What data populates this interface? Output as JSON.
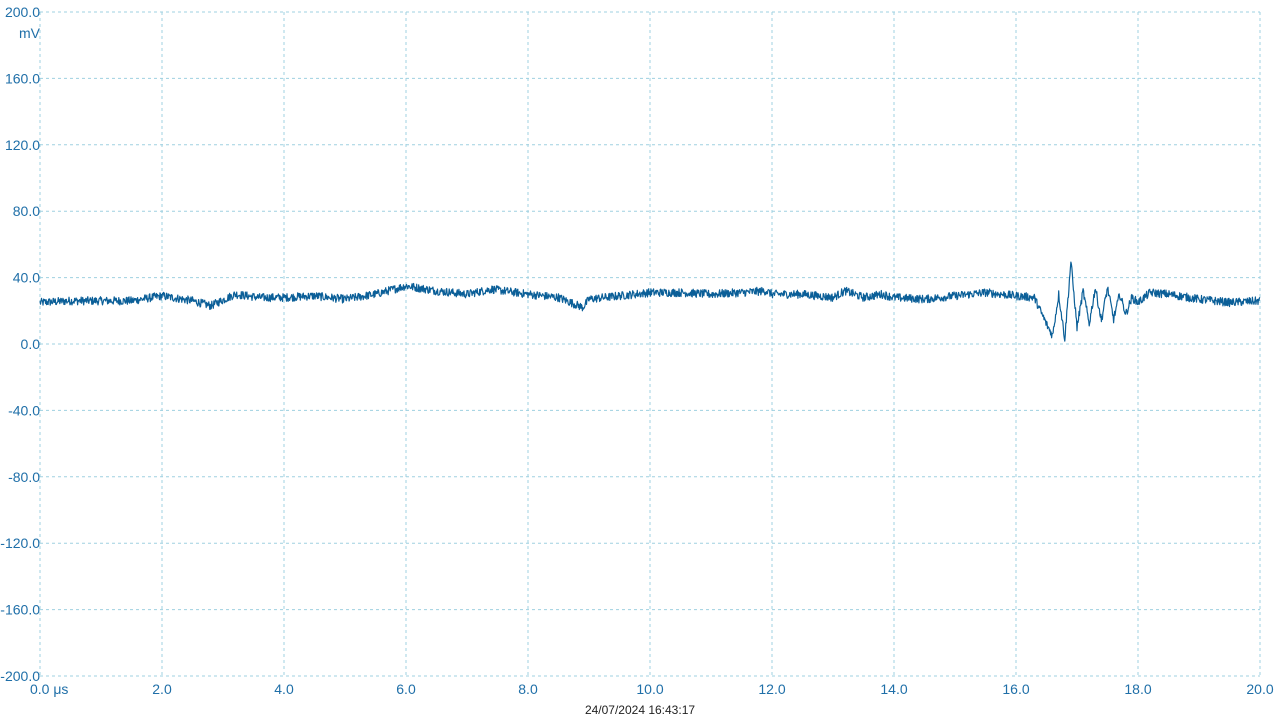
{
  "colors": {
    "trace": "#0b5f98",
    "grid": "#9fd0e0",
    "ticks": "#1f6fa8"
  },
  "timestamp": "24/07/2024 16:43:17",
  "chart_data": {
    "type": "line",
    "title": "",
    "xlabel": "μs",
    "ylabel": "mV",
    "xlim": [
      0,
      20
    ],
    "ylim": [
      -200,
      200
    ],
    "grid": true,
    "x_ticks": [
      "0.0 μs",
      "2.0",
      "4.0",
      "6.0",
      "8.0",
      "10.0",
      "12.0",
      "14.0",
      "16.0",
      "18.0",
      "20.0"
    ],
    "y_ticks": [
      "200.0",
      "160.0",
      "120.0",
      "80.0",
      "40.0",
      "0.0",
      "-40.0",
      "-80.0",
      "-120.0",
      "-160.0",
      "-200.0"
    ],
    "y_unit": "mV",
    "series": [
      {
        "x": [
          0,
          0.5,
          1.0,
          1.5,
          2.0,
          2.5,
          2.8,
          3.2,
          3.6,
          4.0,
          4.5,
          5.0,
          5.5,
          6.0,
          6.5,
          7.0,
          7.4,
          7.8,
          8.0,
          8.5,
          8.9,
          9.0,
          9.5,
          10.0,
          10.5,
          11.0,
          11.5,
          11.9,
          12.0,
          12.5,
          13.0,
          13.2,
          13.5,
          13.8,
          14.0,
          14.5,
          15.0,
          15.5,
          16.0,
          16.3,
          16.5,
          16.6,
          16.7,
          16.8,
          16.9,
          17.0,
          17.1,
          17.2,
          17.3,
          17.4,
          17.5,
          17.6,
          17.7,
          17.8,
          17.9,
          18.0,
          18.2,
          18.5,
          19.0,
          19.5,
          20.0
        ],
        "y": [
          25,
          26,
          26,
          26,
          29,
          26,
          23,
          30,
          28,
          28,
          29,
          27,
          30,
          35,
          32,
          30,
          33,
          31,
          30,
          28,
          22,
          27,
          29,
          31,
          31,
          30,
          31,
          32,
          30,
          30,
          28,
          32,
          28,
          30,
          28,
          27,
          29,
          31,
          29,
          28,
          12,
          5,
          30,
          3,
          50,
          10,
          32,
          12,
          34,
          14,
          34,
          15,
          30,
          18,
          28,
          25,
          31,
          30,
          27,
          25,
          26
        ]
      }
    ]
  }
}
